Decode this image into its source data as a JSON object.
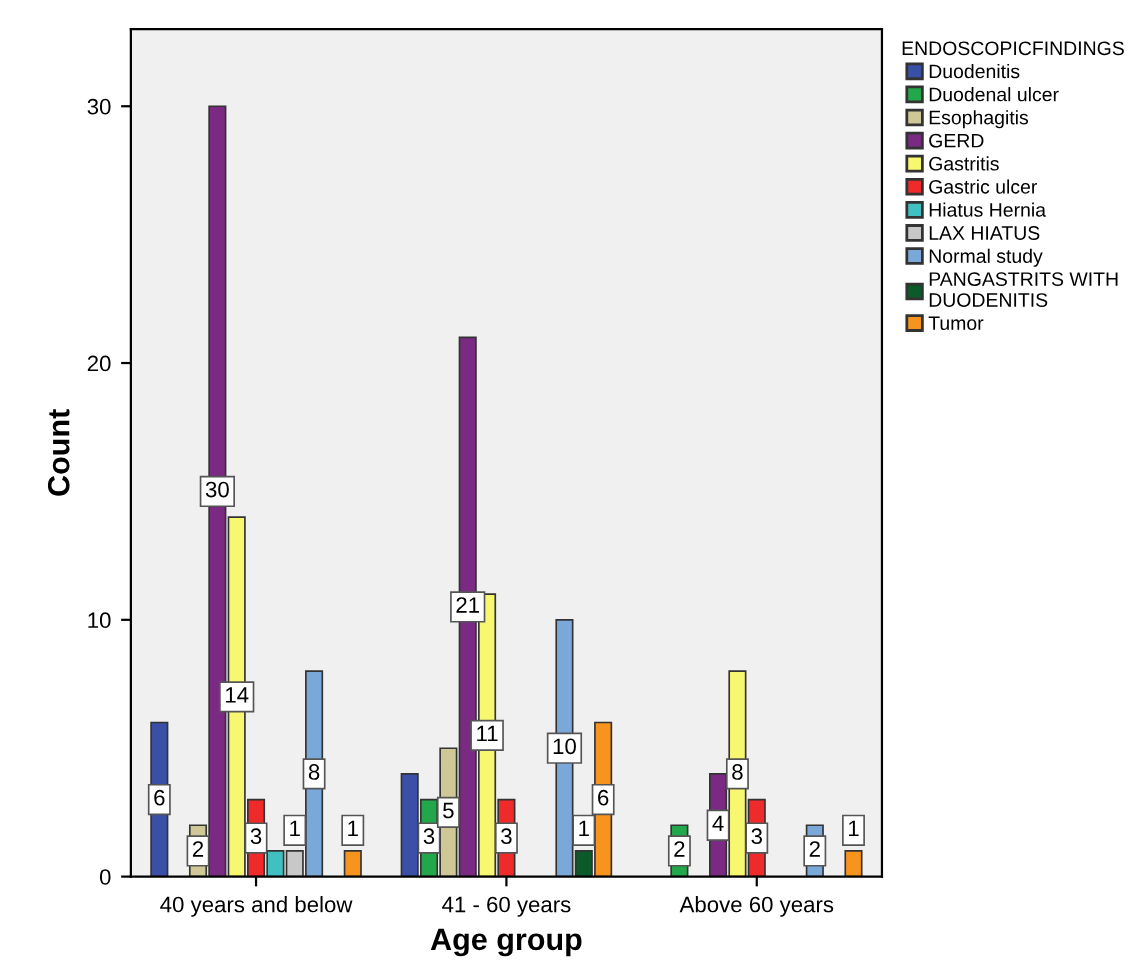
{
  "chart_data": {
    "type": "bar",
    "xlabel": "Age group",
    "ylabel": "Count",
    "legend_title": "ENDOSCOPICFINDINGS",
    "categories": [
      "40 years and below",
      "41 - 60 years",
      "Above 60 years"
    ],
    "series": [
      {
        "name": "Duodenitis",
        "color": "#3a50a8",
        "values": [
          6,
          4,
          null
        ],
        "value_labels": [
          "6",
          null,
          null
        ]
      },
      {
        "name": "Duodenal ulcer",
        "color": "#22a84a",
        "values": [
          null,
          3,
          2
        ],
        "value_labels": [
          null,
          "3",
          "2"
        ]
      },
      {
        "name": "Esophagitis",
        "color": "#cfc896",
        "values": [
          2,
          5,
          null
        ],
        "value_labels": [
          "2",
          "5",
          null
        ]
      },
      {
        "name": "GERD",
        "color": "#7a2a82",
        "values": [
          30,
          21,
          4
        ],
        "value_labels": [
          "30",
          "21",
          "4"
        ]
      },
      {
        "name": "Gastritis",
        "color": "#f8f870",
        "values": [
          14,
          11,
          8
        ],
        "value_labels": [
          "14",
          "11",
          "8"
        ]
      },
      {
        "name": "Gastric ulcer",
        "color": "#ee2a2a",
        "values": [
          3,
          3,
          3
        ],
        "value_labels": [
          "3",
          "3",
          "3"
        ]
      },
      {
        "name": "Hiatus Hernia",
        "color": "#40c0c0",
        "values": [
          1,
          null,
          null
        ],
        "value_labels": [
          null,
          null,
          null
        ]
      },
      {
        "name": "LAX HIATUS",
        "color": "#c8c8c8",
        "values": [
          1,
          null,
          null
        ],
        "value_labels": [
          "1",
          null,
          null
        ]
      },
      {
        "name": "Normal study",
        "color": "#7aa8d8",
        "values": [
          8,
          10,
          2
        ],
        "value_labels": [
          "8",
          "10",
          "2"
        ]
      },
      {
        "name": "PANGASTRITS WITH\nDUODENITIS",
        "color": "#0a5a2a",
        "values": [
          null,
          1,
          null
        ],
        "value_labels": [
          null,
          "1",
          null
        ]
      },
      {
        "name": "Tumor",
        "color": "#f7941d",
        "values": [
          1,
          6,
          1
        ],
        "value_labels": [
          "1",
          "6",
          "1"
        ]
      }
    ],
    "ylim": [
      0,
      33
    ],
    "yticks": [
      0,
      10,
      20,
      30
    ],
    "legend": "right",
    "grid": false
  }
}
